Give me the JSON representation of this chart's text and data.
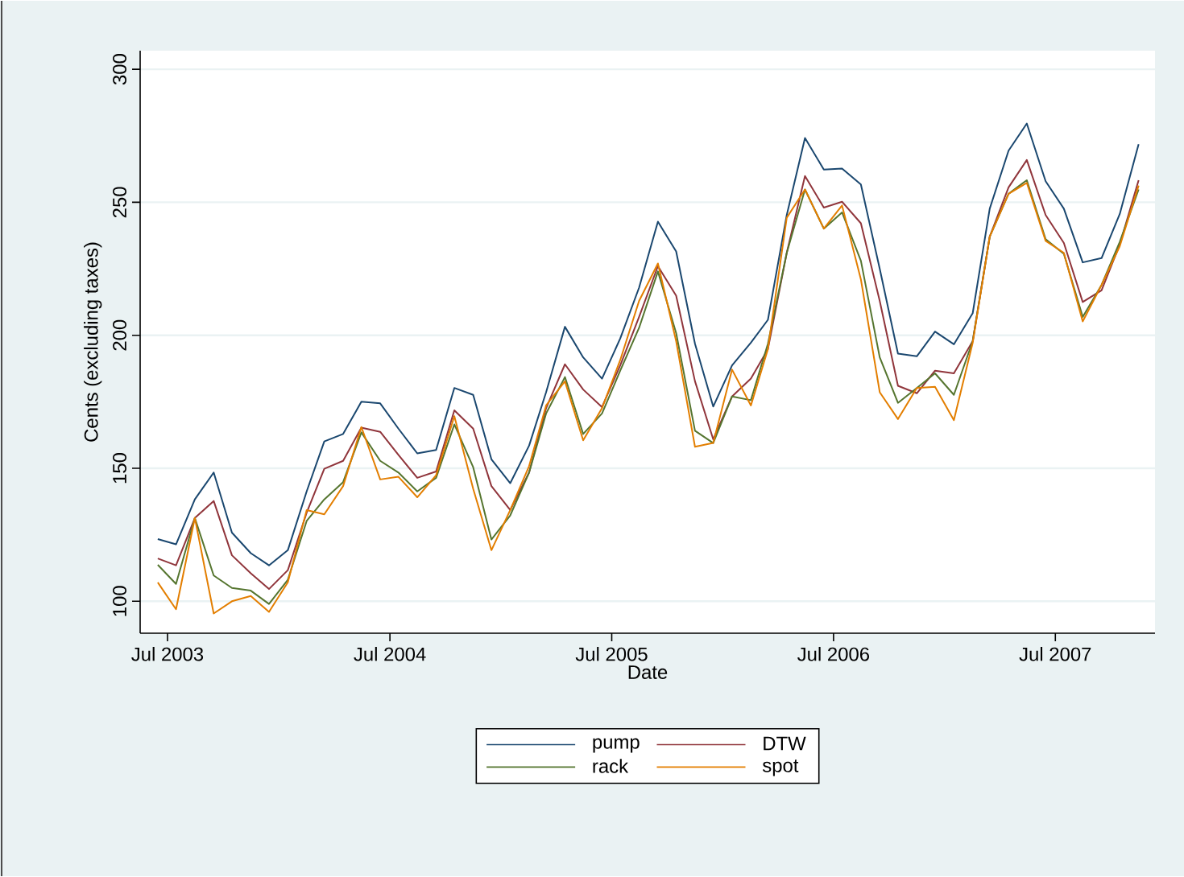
{
  "chart_data": {
    "type": "line",
    "xlabel": "Date",
    "ylabel": "Cents (excluding taxes)",
    "x": [
      "2003-06-15",
      "2003-07-15",
      "2003-08-15",
      "2003-09-15",
      "2003-10-15",
      "2003-11-15",
      "2003-12-15",
      "2004-01-15",
      "2004-02-15",
      "2004-03-15",
      "2004-04-15",
      "2004-05-15",
      "2004-06-15",
      "2004-07-15",
      "2004-08-15",
      "2004-09-15",
      "2004-10-15",
      "2004-11-15",
      "2004-12-15",
      "2005-01-15",
      "2005-02-15",
      "2005-03-15",
      "2005-04-15",
      "2005-05-15",
      "2005-06-15",
      "2005-07-15",
      "2005-08-15",
      "2005-09-15",
      "2005-10-15",
      "2005-11-15",
      "2005-12-15",
      "2006-01-15",
      "2006-02-15",
      "2006-03-15",
      "2006-04-15",
      "2006-05-15",
      "2006-06-15",
      "2006-07-15",
      "2006-08-15",
      "2006-09-15",
      "2006-10-15",
      "2006-11-15",
      "2006-12-15",
      "2007-01-15",
      "2007-02-15",
      "2007-03-15",
      "2007-04-15",
      "2007-05-15",
      "2007-06-15",
      "2007-07-15",
      "2007-08-15",
      "2007-09-15",
      "2007-10-15",
      "2007-11-15"
    ],
    "series": [
      {
        "name": "pump",
        "color": "#1a476f",
        "values": [
          123.4,
          121.4,
          138.3,
          148.4,
          125.8,
          118.1,
          113.5,
          119.2,
          141.3,
          160.1,
          162.9,
          175.0,
          174.4,
          164.9,
          155.6,
          156.9,
          180.2,
          177.6,
          153.4,
          144.4,
          158.5,
          178.6,
          203.2,
          191.7,
          183.7,
          198.8,
          217.9,
          242.7,
          231.5,
          196.8,
          173.2,
          188.7,
          197.2,
          205.8,
          245.2,
          274.2,
          262.3,
          262.7,
          256.7,
          225.0,
          193.1,
          192.1,
          201.4,
          196.6,
          208.3,
          247.6,
          269.4,
          279.6,
          257.9,
          247.6,
          227.4,
          229.0,
          245.6,
          271.8
        ]
      },
      {
        "name": "DTW",
        "color": "#90353b",
        "values": [
          116.1,
          113.5,
          131.3,
          137.7,
          117.3,
          110.5,
          104.6,
          111.7,
          133.3,
          149.8,
          152.8,
          165.3,
          163.7,
          155.0,
          146.4,
          148.8,
          171.8,
          164.9,
          143.3,
          134.3,
          148.4,
          172.6,
          189.1,
          179.6,
          173.0,
          188.7,
          206.9,
          226.0,
          214.9,
          182.7,
          160.9,
          177.0,
          183.7,
          194.8,
          231.0,
          259.9,
          248.0,
          250.2,
          242.1,
          212.9,
          181.0,
          178.2,
          186.7,
          185.7,
          197.8,
          237.1,
          255.6,
          265.9,
          245.2,
          234.7,
          212.5,
          216.9,
          234.1,
          258.3
        ]
      },
      {
        "name": "rack",
        "color": "#55752f",
        "values": [
          113.7,
          106.5,
          131.3,
          109.7,
          105.0,
          104.0,
          99.0,
          108.1,
          130.2,
          138.3,
          144.8,
          163.5,
          152.8,
          148.4,
          141.3,
          146.4,
          166.5,
          150.4,
          123.2,
          132.3,
          148.4,
          170.6,
          184.3,
          162.9,
          170.6,
          186.7,
          202.8,
          224.0,
          200.8,
          164.1,
          159.5,
          177.0,
          175.6,
          196.8,
          231.0,
          254.8,
          240.1,
          246.2,
          228.0,
          191.7,
          174.6,
          180.2,
          185.7,
          177.6,
          197.8,
          237.1,
          253.2,
          258.3,
          236.1,
          230.6,
          206.9,
          218.9,
          235.1,
          254.8
        ]
      },
      {
        "name": "spot",
        "color": "#e37e00",
        "values": [
          107.1,
          97.0,
          131.3,
          95.4,
          100.0,
          102.0,
          96.0,
          107.1,
          134.3,
          132.7,
          143.3,
          165.5,
          145.8,
          146.8,
          139.1,
          147.4,
          169.6,
          142.3,
          119.2,
          134.3,
          150.8,
          173.6,
          182.7,
          160.5,
          172.6,
          190.7,
          212.9,
          227.0,
          197.8,
          158.1,
          159.5,
          187.1,
          173.6,
          194.8,
          244.2,
          254.8,
          240.1,
          248.8,
          221.0,
          178.6,
          168.5,
          180.2,
          180.6,
          168.1,
          197.2,
          237.1,
          253.2,
          257.3,
          235.5,
          231.0,
          205.2,
          218.9,
          233.5,
          256.3
        ]
      }
    ],
    "xlim": [
      "2003-05-17",
      "2007-12-12"
    ],
    "xticks": [
      {
        "value": "2003-07-01",
        "label": "Jul 2003"
      },
      {
        "value": "2004-07-01",
        "label": "Jul 2004"
      },
      {
        "value": "2005-07-01",
        "label": "Jul 2005"
      },
      {
        "value": "2006-07-01",
        "label": "Jul 2006"
      },
      {
        "value": "2007-07-01",
        "label": "Jul 2007"
      }
    ],
    "ylim": [
      88,
      307
    ],
    "yticks": [
      100,
      150,
      200,
      250,
      300
    ],
    "grid": "y",
    "legend": "bottom",
    "marker": "none",
    "line_style": "solid"
  }
}
